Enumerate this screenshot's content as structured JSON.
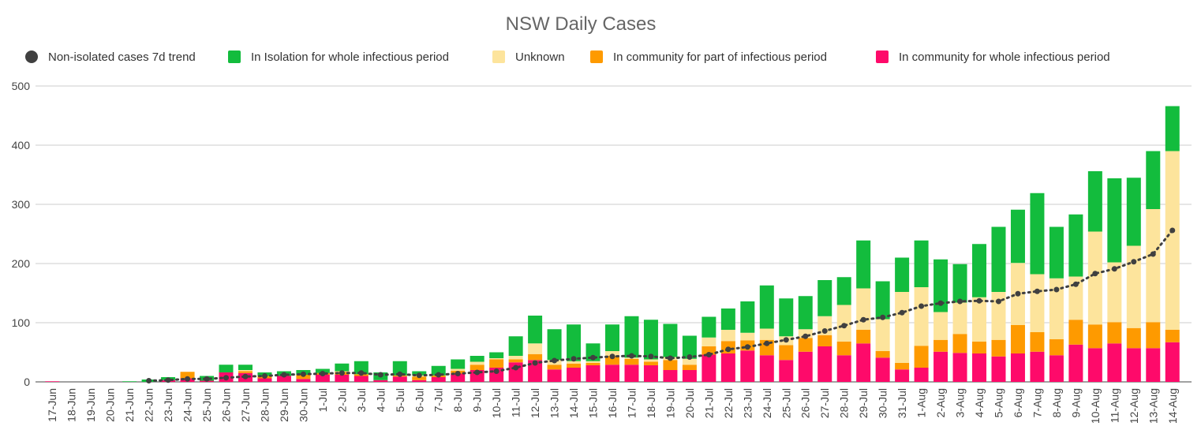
{
  "chart_data": {
    "type": "bar",
    "stacked": true,
    "title": "NSW Daily Cases",
    "categories": [
      "17-Jun",
      "18-Jun",
      "19-Jun",
      "20-Jun",
      "21-Jun",
      "22-Jun",
      "23-Jun",
      "24-Jun",
      "25-Jun",
      "26-Jun",
      "27-Jun",
      "28-Jun",
      "29-Jun",
      "30-Jun",
      "1-Jul",
      "2-Jul",
      "3-Jul",
      "4-Jul",
      "5-Jul",
      "6-Jul",
      "7-Jul",
      "8-Jul",
      "9-Jul",
      "10-Jul",
      "11-Jul",
      "12-Jul",
      "13-Jul",
      "14-Jul",
      "15-Jul",
      "16-Jul",
      "17-Jul",
      "18-Jul",
      "19-Jul",
      "20-Jul",
      "21-Jul",
      "22-Jul",
      "23-Jul",
      "24-Jul",
      "25-Jul",
      "26-Jul",
      "27-Jul",
      "28-Jul",
      "29-Jul",
      "30-Jul",
      "31-Jul",
      "1-Aug",
      "2-Aug",
      "3-Aug",
      "4-Aug",
      "5-Aug",
      "6-Aug",
      "7-Aug",
      "8-Aug",
      "9-Aug",
      "10-Aug",
      "11-Aug",
      "12-Aug",
      "13-Aug",
      "14-Aug"
    ],
    "series": [
      {
        "name": "Non-isolated cases 7d trend",
        "type": "line",
        "color": "#404040",
        "values": [
          null,
          null,
          null,
          null,
          null,
          2,
          3,
          5,
          5,
          7,
          9,
          10,
          12,
          13,
          14,
          15,
          15,
          12,
          13,
          11,
          12,
          14,
          16,
          18,
          24,
          32,
          36,
          39,
          41,
          43,
          44,
          43,
          40,
          42,
          46,
          55,
          59,
          65,
          71,
          77,
          86,
          95,
          105,
          109,
          117,
          128,
          133,
          136,
          137,
          136,
          149,
          153,
          156,
          165,
          183,
          191,
          203,
          216,
          256
        ]
      },
      {
        "name": "In Isolation for whole infectious period",
        "color": "#13bc3d",
        "values": [
          0,
          0,
          0,
          0,
          1,
          4,
          5,
          0,
          8,
          13,
          9,
          6,
          8,
          8,
          7,
          13,
          22,
          13,
          24,
          7,
          16,
          16,
          10,
          10,
          33,
          47,
          52,
          62,
          30,
          45,
          70,
          67,
          56,
          39,
          35,
          36,
          53,
          73,
          64,
          56,
          61,
          47,
          81,
          64,
          58,
          79,
          89,
          65,
          90,
          110,
          90,
          137,
          87,
          105,
          102,
          142,
          115,
          98,
          76
        ]
      },
      {
        "name": "Unknown",
        "color": "#fde49c",
        "values": [
          0,
          0,
          0,
          0,
          0,
          0,
          0,
          0,
          0,
          0,
          2,
          0,
          0,
          0,
          0,
          1,
          0,
          0,
          0,
          2,
          0,
          3,
          5,
          2,
          6,
          18,
          8,
          4,
          3,
          8,
          2,
          4,
          5,
          10,
          15,
          19,
          13,
          19,
          15,
          15,
          32,
          62,
          70,
          54,
          120,
          99,
          47,
          53,
          75,
          81,
          105,
          98,
          103,
          73,
          157,
          101,
          139,
          191,
          302
        ]
      },
      {
        "name": "In community for part of infectious period",
        "color": "#fe9a00",
        "values": [
          0,
          0,
          0,
          0,
          0,
          0,
          0,
          11,
          0,
          0,
          3,
          4,
          0,
          7,
          3,
          5,
          3,
          0,
          2,
          6,
          3,
          5,
          9,
          14,
          5,
          10,
          8,
          7,
          4,
          15,
          10,
          6,
          17,
          9,
          14,
          21,
          17,
          26,
          25,
          23,
          19,
          23,
          23,
          11,
          11,
          37,
          20,
          32,
          20,
          28,
          48,
          33,
          27,
          42,
          40,
          36,
          34,
          44,
          21
        ]
      },
      {
        "name": "In community for whole infectious period",
        "color": "#fe0a6a",
        "values": [
          1,
          0,
          0,
          0,
          0,
          0,
          3,
          6,
          2,
          16,
          15,
          6,
          10,
          5,
          12,
          12,
          10,
          3,
          9,
          3,
          8,
          14,
          20,
          24,
          33,
          37,
          21,
          24,
          28,
          29,
          29,
          28,
          20,
          20,
          46,
          48,
          53,
          45,
          37,
          51,
          60,
          45,
          65,
          41,
          21,
          24,
          51,
          49,
          48,
          43,
          48,
          51,
          45,
          63,
          57,
          65,
          57,
          57,
          67
        ]
      }
    ],
    "ylim": [
      0,
      500
    ],
    "yticks": [
      0,
      100,
      200,
      300,
      400,
      500
    ],
    "grid": true,
    "legend": "top"
  }
}
